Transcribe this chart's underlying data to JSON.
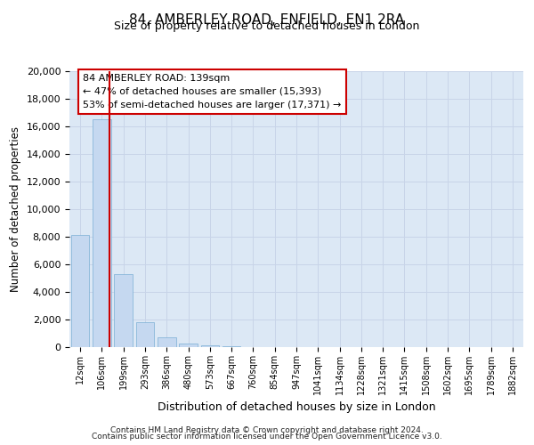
{
  "title": "84, AMBERLEY ROAD, ENFIELD, EN1 2RA",
  "subtitle": "Size of property relative to detached houses in London",
  "xlabel": "Distribution of detached houses by size in London",
  "ylabel": "Number of detached properties",
  "categories": [
    "12sqm",
    "106sqm",
    "199sqm",
    "293sqm",
    "386sqm",
    "480sqm",
    "573sqm",
    "667sqm",
    "760sqm",
    "854sqm",
    "947sqm",
    "1041sqm",
    "1134sqm",
    "1228sqm",
    "1321sqm",
    "1415sqm",
    "1508sqm",
    "1602sqm",
    "1695sqm",
    "1789sqm",
    "1882sqm"
  ],
  "bar_values": [
    8100,
    16500,
    5300,
    1800,
    700,
    280,
    150,
    80,
    0,
    0,
    0,
    0,
    0,
    0,
    0,
    0,
    0,
    0,
    0,
    0,
    0
  ],
  "bar_color": "#c5d8f0",
  "bar_edge_color": "#7aafd4",
  "property_label": "84 AMBERLEY ROAD: 139sqm",
  "annotation_line1": "← 47% of detached houses are smaller (15,393)",
  "annotation_line2": "53% of semi-detached houses are larger (17,371) →",
  "vline_color": "#cc0000",
  "vline_position": 1.35,
  "annotation_box_color": "#ffffff",
  "annotation_box_edge": "#cc0000",
  "ylim": [
    0,
    20000
  ],
  "yticks": [
    0,
    2000,
    4000,
    6000,
    8000,
    10000,
    12000,
    14000,
    16000,
    18000,
    20000
  ],
  "grid_color": "#c8d4e8",
  "bg_color": "#dce8f5",
  "footer_line1": "Contains HM Land Registry data © Crown copyright and database right 2024.",
  "footer_line2": "Contains public sector information licensed under the Open Government Licence v3.0."
}
